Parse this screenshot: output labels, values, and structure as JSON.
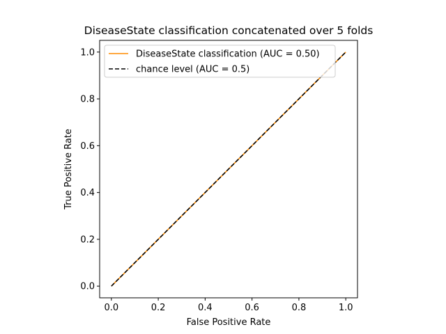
{
  "chart_data": {
    "type": "line",
    "title": "DiseaseState classification concatenated over 5 folds",
    "xlabel": "False Positive Rate",
    "ylabel": "True Positive Rate",
    "xlim": [
      -0.05,
      1.05
    ],
    "ylim": [
      -0.05,
      1.05
    ],
    "xticks": [
      0.0,
      0.2,
      0.4,
      0.6,
      0.8,
      1.0
    ],
    "yticks": [
      0.0,
      0.2,
      0.4,
      0.6,
      0.8,
      1.0
    ],
    "xtick_labels": [
      "0.0",
      "0.2",
      "0.4",
      "0.6",
      "0.8",
      "1.0"
    ],
    "ytick_labels": [
      "0.0",
      "0.2",
      "0.4",
      "0.6",
      "0.8",
      "1.0"
    ],
    "grid": false,
    "legend_position": "top-left",
    "series": [
      {
        "name": "DiseaseState classification (AUC = 0.50)",
        "color": "#ff8c00",
        "style": "solid",
        "x": [
          0.0,
          1.0
        ],
        "y": [
          0.0,
          1.0
        ]
      },
      {
        "name": "chance level (AUC = 0.5)",
        "color": "#000000",
        "style": "dashed",
        "x": [
          0.0,
          1.0
        ],
        "y": [
          0.0,
          1.0
        ]
      }
    ]
  }
}
